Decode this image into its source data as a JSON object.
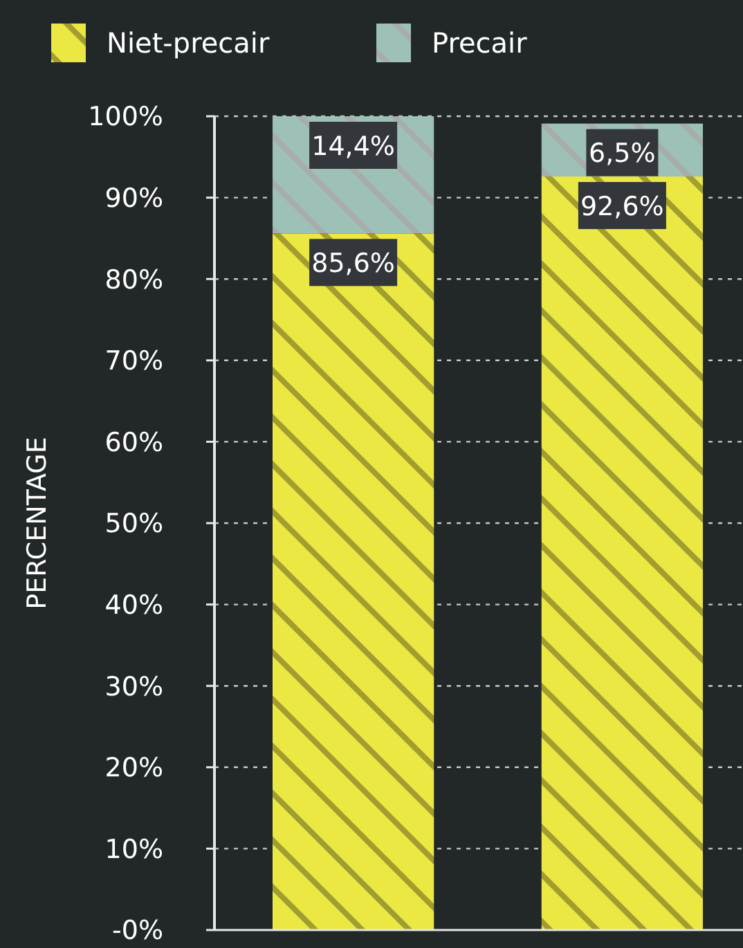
{
  "chart_data": {
    "type": "bar",
    "stacked": true,
    "categories": [
      null,
      null
    ],
    "series": [
      {
        "name": "Niet-precair",
        "color": "#ebe743",
        "values": [
          85.6,
          92.6
        ],
        "value_labels": [
          "85,6%",
          "92,6%"
        ]
      },
      {
        "name": "Precair",
        "color": "#9dc0b7",
        "values": [
          14.4,
          6.5
        ],
        "value_labels": [
          "14,4%",
          "6,5%"
        ]
      }
    ],
    "ylabel": "PERCENTAGE",
    "ylim": [
      0,
      100
    ],
    "yticks": [
      {
        "value": 0,
        "label": "-0%"
      },
      {
        "value": 10,
        "label": "10%"
      },
      {
        "value": 20,
        "label": "20%"
      },
      {
        "value": 30,
        "label": "30%"
      },
      {
        "value": 40,
        "label": "40%"
      },
      {
        "value": 50,
        "label": "50%"
      },
      {
        "value": 60,
        "label": "60%"
      },
      {
        "value": 70,
        "label": "70%"
      },
      {
        "value": 80,
        "label": "80%"
      },
      {
        "value": 90,
        "label": "90%"
      },
      {
        "value": 100,
        "label": "100%"
      }
    ],
    "grid": "y",
    "legend": "top left",
    "tick_labels": "y"
  }
}
